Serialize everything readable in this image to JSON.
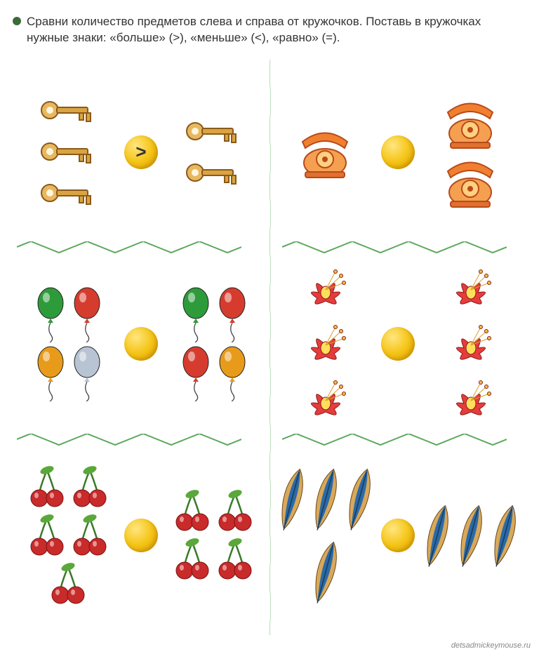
{
  "instruction": "Сравни количество предметов слева и справа от кружочков. Поставь в кружочках нужные знаки: «больше» (>), «меньше» (<), «равно» (=).",
  "bullet_color": "#3a6b3a",
  "circle_gradient": [
    "#ffe680",
    "#f5c518",
    "#e0a800"
  ],
  "divider_color": "#5aa85a",
  "watermark": "detsadmickeymouse.ru",
  "rows": [
    {
      "left_cell": {
        "item": "key",
        "left_count": 3,
        "right_count": 2,
        "sign": ">"
      },
      "right_cell": {
        "item": "telephone",
        "left_count": 1,
        "right_count": 2,
        "sign": ""
      }
    },
    {
      "left_cell": {
        "item": "balloon",
        "left_count": 4,
        "right_count": 4,
        "sign": "",
        "colors_left": [
          "#2e9b3a",
          "#d63c2e",
          "#e89b1a",
          "#b8c4d4"
        ],
        "colors_right": [
          "#2e9b3a",
          "#d63c2e",
          "#d63c2e",
          "#e89b1a"
        ]
      },
      "right_cell": {
        "item": "flower",
        "left_count": 3,
        "right_count": 3,
        "sign": ""
      }
    },
    {
      "left_cell": {
        "item": "cherry",
        "left_count": 5,
        "right_count": 4,
        "sign": ""
      },
      "right_cell": {
        "item": "feather",
        "left_count": 4,
        "right_count": 3,
        "sign": ""
      }
    }
  ]
}
